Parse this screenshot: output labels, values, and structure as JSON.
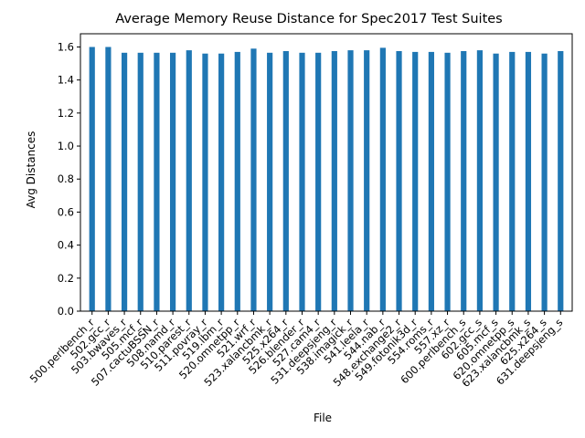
{
  "chart_data": {
    "type": "bar",
    "title": "Average Memory Reuse Distance for Spec2017 Test Suites",
    "xlabel": "File",
    "ylabel": "Avg Distances",
    "ylim": [
      0,
      1.68
    ],
    "yticks": [
      0.0,
      0.2,
      0.4,
      0.6,
      0.8,
      1.0,
      1.2,
      1.4,
      1.6
    ],
    "ytick_labels": [
      "0.0",
      "0.2",
      "0.4",
      "0.6",
      "0.8",
      "1.0",
      "1.2",
      "1.4",
      "1.6"
    ],
    "grid": false,
    "bar_color": "#1f77b4",
    "categories": [
      "500.perlbench_r",
      "502.gcc_r",
      "503.bwaves_r",
      "505.mcf_r",
      "507.cactuBSSN_r",
      "508.namd_r",
      "510.parest_r",
      "511.povray_r",
      "519.lbm_r",
      "520.omnetpp_r",
      "521.wrf_r",
      "523.xalancbmk_r",
      "525.x264_r",
      "526.blender_r",
      "527.cam4_r",
      "531.deepsjeng_r",
      "538.imagick_r",
      "541.leela_r",
      "544.nab_r",
      "548.exchange2_r",
      "549.fotonik3d_r",
      "554.roms_r",
      "557.xz_r",
      "600.perlbench_s",
      "602.gcc_s",
      "605.mcf_s",
      "620.omnetpp_s",
      "623.xalancbmk_s",
      "625.x264_s",
      "631.deepsjeng_s"
    ],
    "values": [
      1.6,
      1.6,
      1.565,
      1.565,
      1.565,
      1.565,
      1.58,
      1.56,
      1.56,
      1.57,
      1.59,
      1.565,
      1.575,
      1.565,
      1.565,
      1.575,
      1.58,
      1.58,
      1.595,
      1.575,
      1.57,
      1.57,
      1.565,
      1.575,
      1.58,
      1.56,
      1.57,
      1.57,
      1.56,
      1.575
    ]
  }
}
